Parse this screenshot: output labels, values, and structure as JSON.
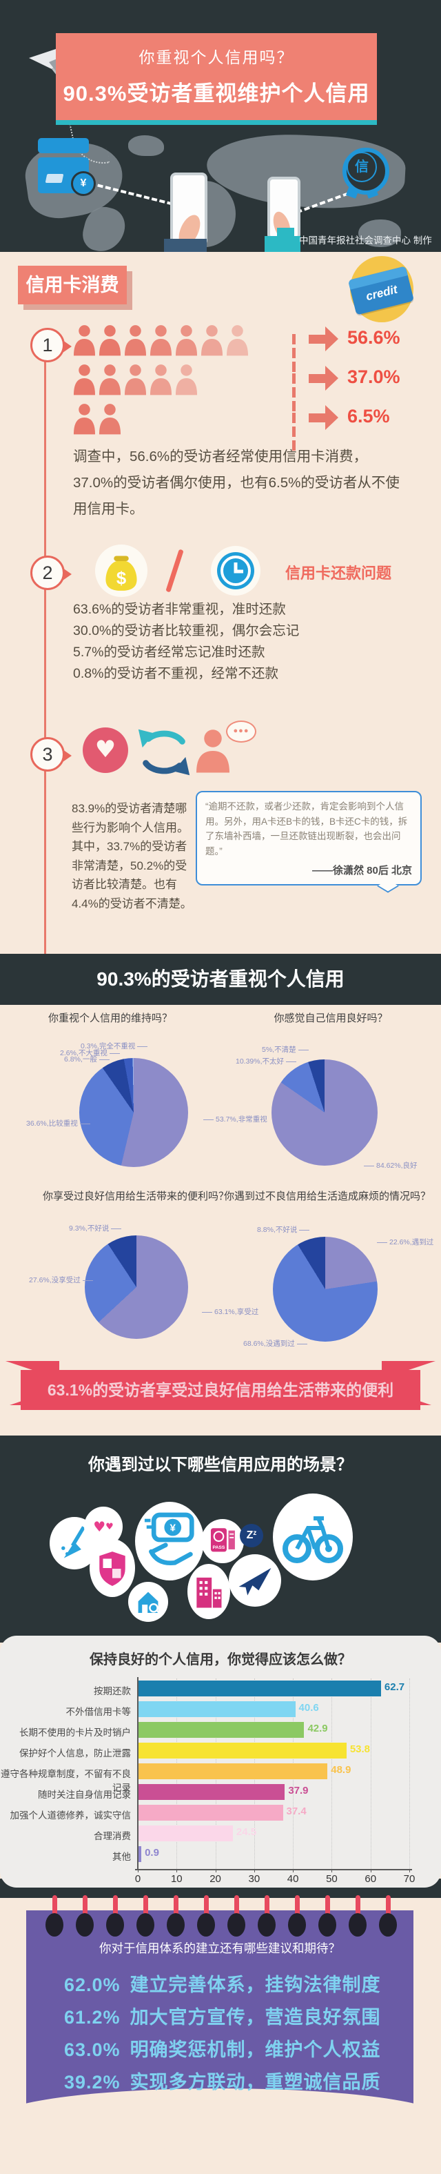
{
  "header": {
    "subtitle": "你重视个人信用吗？",
    "title": "90.3%受访者重视维护个人信用",
    "credit": "中国青年报社社会调查中心 制作",
    "badge_char": "信",
    "yen": "¥"
  },
  "section1": {
    "label": "信用卡消费",
    "credit_icon_text": "credit",
    "step1": {
      "num": "1",
      "rows": [
        {
          "count": 7,
          "value": "56.6%"
        },
        {
          "count": 5,
          "value": "37.0%"
        },
        {
          "count": 2,
          "value": "6.5%"
        }
      ],
      "text": "调查中，56.6%的受访者经常使用信用卡消费，37.0%的受访者偶尔使用，也有6.5%的受访者从不使用信用卡。"
    },
    "step2": {
      "num": "2",
      "title": "信用卡还款问题",
      "dollar": "$",
      "lines": [
        "63.6%的受访者非常重视，准时还款",
        "30.0%的受访者比较重视，偶尔会忘记",
        "5.7%的受访者经常忘记准时还款",
        "0.8%的受访者不重视，经常不还款"
      ]
    },
    "step3": {
      "num": "3",
      "bubble_dots": "●●●",
      "text": "83.9%的受访者清楚哪些行为影响个人信用。其中，33.7%的受访者非常清楚，50.2%的受访者比较清楚。也有4.4%的受访者不清楚。",
      "quote": "“逾期不还款，或者少还款，肯定会影响到个人信用。另外，用A卡还B卡的钱，B卡还C卡的钱，拆了东墙补西墙，一旦还款链出现断裂，也会出问题。”",
      "quote_author": "——徐潇然 80后 北京"
    }
  },
  "band1": "90.3%的受访者重视个人信用",
  "banner63": "63.1%的受访者享受过良好信用给生活带来的便利",
  "scenes": {
    "title": "你遇到过以下哪些信用应用的场景？",
    "passport_text": "PASS",
    "zz_text": "Z",
    "pay_symbol": "¥",
    "icons": [
      "broom",
      "hearts",
      "shield",
      "mobile-payment",
      "house-key",
      "buildings",
      "passport",
      "credit-sleep",
      "plane",
      "bicycle"
    ]
  },
  "suggestions": {
    "title": "你对于信用体系的建立还有哪些建议和期待？",
    "items": [
      {
        "pct": "62.0%",
        "text": "建立完善体系，挂钩法律制度"
      },
      {
        "pct": "61.2%",
        "text": "加大官方宣传，营造良好氛围"
      },
      {
        "pct": "63.0%",
        "text": "明确奖惩机制，维护个人权益"
      },
      {
        "pct": "39.2%",
        "text": "实现多方联动，重塑诚信品质"
      }
    ]
  },
  "colors": {
    "dark": "#2b3538",
    "cream": "#f7e9dc",
    "coral": "#ef8173",
    "crimson": "#e84a5f",
    "teal": "#2cb9c4",
    "purple_panel": "#6a5ba6",
    "suggestion_text": "#7fd2f0",
    "pie_main": "#8d8bc9",
    "pie_second": "#5b7cd6",
    "pie_dark": "#24449e"
  },
  "chart_data": [
    {
      "type": "pie",
      "title": "你重视个人信用的维持吗？",
      "slices": [
        {
          "pct": "53.7%",
          "name": "非常重视",
          "value": 53.7,
          "color": "#8d8bc9"
        },
        {
          "pct": "36.6%",
          "name": "比较重视",
          "value": 36.6,
          "color": "#5b7cd6"
        },
        {
          "pct": "6.8%",
          "name": "一般",
          "value": 6.8,
          "color": "#24449e"
        },
        {
          "pct": "2.6%",
          "name": "不大重视",
          "value": 2.6,
          "color": "#3a5cc0"
        },
        {
          "pct": "0.3%",
          "name": "完全不重视",
          "value": 0.3,
          "color": "#9fb4e8"
        }
      ]
    },
    {
      "type": "pie",
      "title": "你感觉自己信用良好吗？",
      "slices": [
        {
          "pct": "84.62%",
          "name": "良好",
          "value": 84.62,
          "color": "#8d8bc9"
        },
        {
          "pct": "10.39%",
          "name": "不太好",
          "value": 10.39,
          "color": "#5b7cd6"
        },
        {
          "pct": "5%",
          "name": "不清楚",
          "value": 4.99,
          "color": "#24449e"
        }
      ]
    },
    {
      "type": "pie",
      "title": "你享受过良好信用给生活带来的便利吗？",
      "slices": [
        {
          "pct": "63.1%",
          "name": "享受过",
          "value": 63.1,
          "color": "#8d8bc9"
        },
        {
          "pct": "27.6%",
          "name": "没享受过",
          "value": 27.6,
          "color": "#5b7cd6"
        },
        {
          "pct": "9.3%",
          "name": "不好说",
          "value": 9.3,
          "color": "#24449e"
        }
      ]
    },
    {
      "type": "pie",
      "title": "你遇到过不良信用给生活造成麻烦的情况吗？",
      "slices": [
        {
          "pct": "22.6%",
          "name": "遇到过",
          "value": 22.6,
          "color": "#8d8bc9"
        },
        {
          "pct": "68.6%",
          "name": "没遇到过",
          "value": 68.6,
          "color": "#5b7cd6"
        },
        {
          "pct": "8.8%",
          "name": "不好说",
          "value": 8.8,
          "color": "#24449e"
        }
      ]
    },
    {
      "type": "bar",
      "orientation": "horizontal",
      "title": "保持良好的个人信用，你觉得应该怎么做？",
      "categories": [
        "按期还款",
        "不外借信用卡等",
        "长期不使用的卡片及时销户",
        "保护好个人信息，防止泄露",
        "遵守各种规章制度，不留有不良记录",
        "随时关注自身信用记录",
        "加强个人道德修养，诚实守信",
        "合理消费",
        "其他"
      ],
      "values": [
        62.7,
        40.6,
        42.9,
        53.8,
        48.9,
        37.9,
        37.4,
        24.5,
        0.9
      ],
      "colors": [
        "#1b7fae",
        "#7fd6f2",
        "#8cc963",
        "#f7e331",
        "#f9c34d",
        "#ca4f94",
        "#f6aac6",
        "#fbd7e9",
        "#8f86cf"
      ],
      "xlim": [
        0,
        70
      ],
      "ticks": [
        0,
        10,
        20,
        30,
        40,
        50,
        60,
        70
      ],
      "grid": true,
      "legend": false
    }
  ]
}
